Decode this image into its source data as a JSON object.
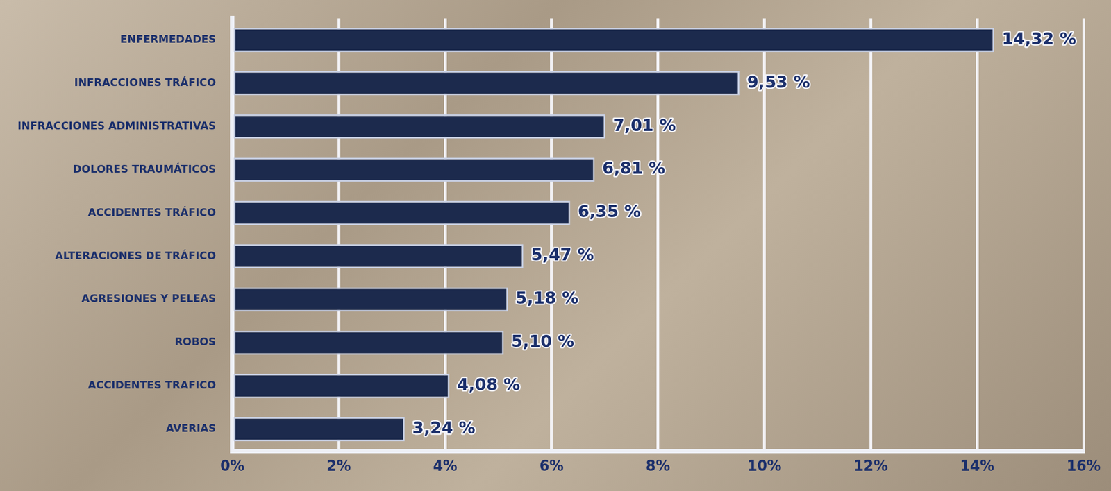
{
  "chart_data": {
    "type": "bar",
    "orientation": "horizontal",
    "categories": [
      "ENFERMEDADES",
      "INFRACCIONES TRÁFICO",
      "INFRACCIONES ADMINISTRATIVAS",
      "DOLORES TRAUMÁTICOS",
      "ACCIDENTES TRÁFICO",
      "ALTERACIONES DE TRÁFICO",
      "AGRESIONES Y PELEAS",
      "ROBOS",
      "ACCIDENTES TRAFICO",
      "AVERIAS"
    ],
    "values": [
      14.32,
      9.53,
      7.01,
      6.81,
      6.35,
      5.47,
      5.18,
      5.1,
      4.08,
      3.24
    ],
    "value_labels": [
      "14,32 %",
      "9,53 %",
      "7,01 %",
      "6,81 %",
      "6,35 %",
      "5,47 %",
      "5,18 %",
      "5,10 %",
      "4,08 %",
      "3,24 %"
    ],
    "color": "#1c2a4d",
    "xlim": [
      0,
      16
    ],
    "xticks": [
      {
        "value": 0,
        "label": "0%"
      },
      {
        "value": 2,
        "label": "2%"
      },
      {
        "value": 4,
        "label": "4%"
      },
      {
        "value": 6,
        "label": "6%"
      },
      {
        "value": 8,
        "label": "8%"
      },
      {
        "value": 10,
        "label": "10%"
      },
      {
        "value": 12,
        "label": "12%"
      },
      {
        "value": 14,
        "label": "14%"
      },
      {
        "value": 16,
        "label": "16%"
      }
    ],
    "grid": true,
    "data_labels": true
  }
}
